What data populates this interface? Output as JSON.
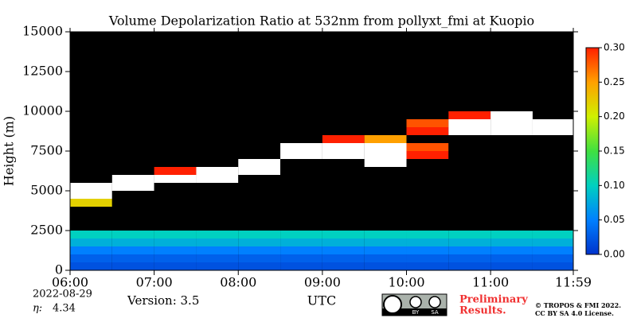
{
  "chart_data": {
    "type": "heatmap",
    "title": "Volume Depolarization Ratio at 532nm from pollyxt_fmi at Kuopio",
    "y_label": "Height (m)",
    "x_label": "UTC",
    "xlim": [
      6,
      11.9833
    ],
    "xticks": [
      {
        "value": 6,
        "label": "06:00"
      },
      {
        "value": 7,
        "label": "07:00"
      },
      {
        "value": 8,
        "label": "08:00"
      },
      {
        "value": 9,
        "label": "09:00"
      },
      {
        "value": 10,
        "label": "10:00"
      },
      {
        "value": 11,
        "label": "11:00"
      },
      {
        "value": 11.9833,
        "label": "11:59"
      }
    ],
    "ylim": [
      0,
      15000
    ],
    "yticks": [
      0,
      2500,
      5000,
      7500,
      10000,
      12500,
      15000
    ],
    "x": [
      6.25,
      6.75,
      7.25,
      7.75,
      8.25,
      8.75,
      9.25,
      9.75,
      10.25,
      10.75,
      11.25,
      11.75
    ],
    "y": [
      250,
      750,
      1250,
      1750,
      2250,
      2750,
      3250,
      3750,
      4250,
      4750,
      5250,
      5750,
      6250,
      6750,
      7250,
      7750,
      8250,
      8750,
      9250,
      9750,
      10250,
      10750,
      11250,
      11750,
      12250,
      12750,
      13250,
      13750,
      14250,
      14750
    ],
    "z": [
      [
        0.02,
        0.02,
        0.02,
        0.02,
        0.02,
        0.02,
        0.02,
        0.02,
        0.02,
        0.02,
        0.02,
        0.02
      ],
      [
        0.03,
        0.03,
        0.03,
        0.03,
        0.03,
        0.03,
        0.03,
        0.03,
        0.03,
        0.03,
        0.03,
        0.03
      ],
      [
        0.05,
        0.05,
        0.05,
        0.05,
        0.05,
        0.05,
        0.05,
        0.05,
        0.05,
        0.05,
        0.05,
        0.05
      ],
      [
        0.08,
        0.08,
        0.08,
        0.08,
        0.08,
        0.08,
        0.08,
        0.08,
        0.08,
        0.08,
        0.08,
        0.08
      ],
      [
        0.1,
        0.1,
        0.1,
        0.1,
        0.1,
        0.1,
        0.1,
        0.1,
        0.1,
        0.1,
        0.1,
        0.1
      ],
      [
        null,
        null,
        null,
        null,
        null,
        null,
        null,
        null,
        null,
        null,
        null,
        null
      ],
      [
        null,
        null,
        null,
        null,
        null,
        null,
        null,
        null,
        null,
        null,
        null,
        null
      ],
      [
        null,
        null,
        null,
        null,
        null,
        null,
        null,
        null,
        null,
        null,
        null,
        null
      ],
      [
        0.22,
        null,
        null,
        null,
        null,
        null,
        null,
        null,
        null,
        null,
        null,
        null
      ],
      [
        0.38,
        null,
        null,
        null,
        null,
        null,
        null,
        null,
        null,
        null,
        null,
        null
      ],
      [
        0.36,
        0.37,
        null,
        null,
        null,
        null,
        null,
        null,
        null,
        null,
        null,
        null
      ],
      [
        null,
        0.35,
        0.38,
        0.36,
        null,
        null,
        null,
        null,
        null,
        null,
        null,
        null
      ],
      [
        null,
        null,
        0.3,
        0.32,
        0.37,
        null,
        null,
        null,
        null,
        null,
        null,
        null
      ],
      [
        null,
        null,
        null,
        null,
        0.33,
        null,
        null,
        0.34,
        null,
        null,
        null,
        null
      ],
      [
        null,
        null,
        null,
        null,
        null,
        0.36,
        0.37,
        0.38,
        0.3,
        null,
        null,
        null
      ],
      [
        null,
        null,
        null,
        null,
        null,
        0.35,
        0.38,
        0.36,
        0.28,
        null,
        null,
        null
      ],
      [
        null,
        null,
        null,
        null,
        null,
        null,
        0.3,
        0.25,
        null,
        null,
        null,
        null
      ],
      [
        null,
        null,
        null,
        null,
        null,
        null,
        null,
        null,
        0.3,
        0.37,
        0.36,
        0.35
      ],
      [
        null,
        null,
        null,
        null,
        null,
        null,
        null,
        null,
        0.28,
        0.38,
        0.38,
        0.36
      ],
      [
        null,
        null,
        null,
        null,
        null,
        null,
        null,
        null,
        null,
        0.3,
        0.33,
        null
      ],
      [
        null,
        null,
        null,
        null,
        null,
        null,
        null,
        null,
        null,
        null,
        null,
        null
      ],
      [
        null,
        null,
        null,
        null,
        null,
        null,
        null,
        null,
        null,
        null,
        null,
        null
      ],
      [
        null,
        null,
        null,
        null,
        null,
        null,
        null,
        null,
        null,
        null,
        null,
        null
      ],
      [
        null,
        null,
        null,
        null,
        null,
        null,
        null,
        null,
        null,
        null,
        null,
        null
      ],
      [
        null,
        null,
        null,
        null,
        null,
        null,
        null,
        null,
        null,
        null,
        null,
        null
      ],
      [
        null,
        null,
        null,
        null,
        null,
        null,
        null,
        null,
        null,
        null,
        null,
        null
      ],
      [
        null,
        null,
        null,
        null,
        null,
        null,
        null,
        null,
        null,
        null,
        null,
        null
      ],
      [
        null,
        null,
        null,
        null,
        null,
        null,
        null,
        null,
        null,
        null,
        null,
        null
      ],
      [
        null,
        null,
        null,
        null,
        null,
        null,
        null,
        null,
        null,
        null,
        null,
        null
      ],
      [
        null,
        null,
        null,
        null,
        null,
        null,
        null,
        null,
        null,
        null,
        null,
        null
      ]
    ],
    "zlim": [
      0,
      0.3
    ],
    "zticks": [
      {
        "value": 0,
        "label": "0.00"
      },
      {
        "value": 0.05,
        "label": "0.05"
      },
      {
        "value": 0.1,
        "label": "0.10"
      },
      {
        "value": 0.15,
        "label": "0.15"
      },
      {
        "value": 0.2,
        "label": "0.20"
      },
      {
        "value": 0.25,
        "label": "0.25"
      },
      {
        "value": 0.3,
        "label": "0.30"
      }
    ],
    "colorscale": [
      "#0033cc",
      "#0080ff",
      "#00d0c0",
      "#40e040",
      "#d0f000",
      "#ffa000",
      "#ff2000"
    ],
    "nan_color": "#000000",
    "over_color": "#ffffff",
    "date": "2022-08-29",
    "eta_label": "η:",
    "eta_value": "4.34",
    "version": "Version: 3.5",
    "license_badge": [
      "BY",
      "SA"
    ],
    "preliminary": [
      "Preliminary",
      "Results."
    ],
    "copyright": [
      "© TROPOS & FMI 2022.",
      "CC BY SA 4.0 License."
    ]
  }
}
